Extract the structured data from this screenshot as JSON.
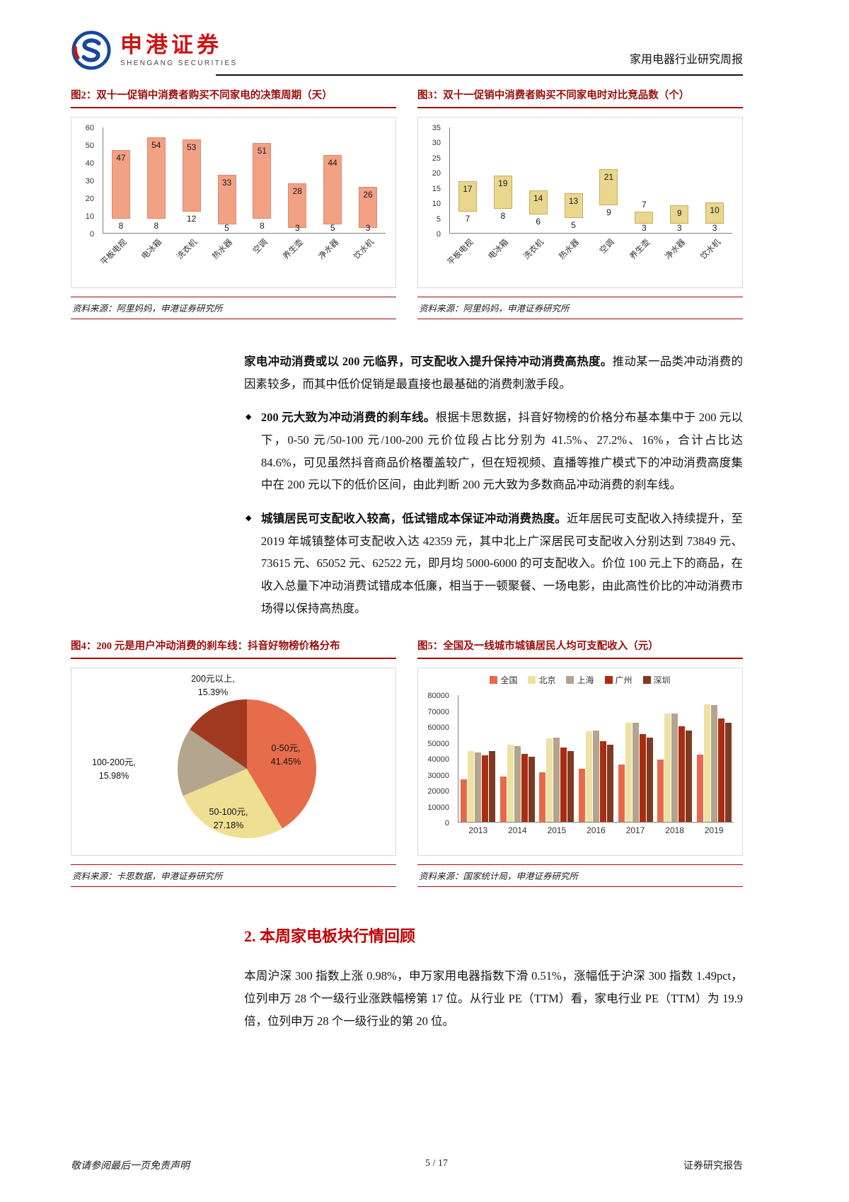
{
  "theme": {
    "accent_red": "#9b0c0c",
    "brand_red": "#cc1414",
    "heading_red": "#c00000"
  },
  "header": {
    "brand_cn": "申港证券",
    "brand_en": "SHENGANG SECURITIES",
    "report_title": "家用电器行业研究周报"
  },
  "body": {
    "bullet_marker": "◆",
    "intro_bold": "家电冲动消费或以 200 元临界，可支配收入提升保持冲动消费高热度。",
    "intro_rest": "推动某一品类冲动消费的因素较多，而其中低价促销是最直接也最基础的消费刺激手段。",
    "bullets": [
      {
        "bold": "200 元大致为冲动消费的刹车线。",
        "rest": "根据卡思数据，抖音好物榜的价格分布基本集中于 200 元以下，0-50 元/50-100 元/100-200 元价位段占比分别为 41.5%、27.2%、16%，合计占比达 84.6%，可见虽然抖音商品价格覆盖较广，但在短视频、直播等推广模式下的冲动消费高度集中在 200 元以下的低价区间，由此判断 200 元大致为多数商品冲动消费的刹车线。"
      },
      {
        "bold": "城镇居民可支配收入较高，低试错成本保证冲动消费热度。",
        "rest": "近年居民可支配收入持续提升，至 2019 年城镇整体可支配收入达 42359 元，其中北上广深居民可支配收入分别达到 73849 元、73615 元、65052 元、62522 元，即月均 5000-6000 的可支配收入。价位 100 元上下的商品，在收入总量下冲动消费试错成本低廉，相当于一顿聚餐、一场电影，由此高性价比的冲动消费市场得以保持高热度。"
      }
    ],
    "section_heading": "2. 本周家电板块行情回顾",
    "section_para": "本周沪深 300 指数上涨 0.98%，申万家用电器指数下滑 0.51%，涨幅低于沪深 300 指数 1.49pct，位列申万 28 个一级行业涨跌幅榜第 17 位。从行业 PE（TTM）看，家电行业 PE（TTM）为 19.9 倍，位列申万 28 个一级行业的第 20 位。"
  },
  "footer": {
    "disclaimer": "敬请参阅最后一页免责声明",
    "page_no": "5 / 17",
    "doc_type": "证券研究报告"
  },
  "chart_data": [
    {
      "id": "fig2",
      "type": "bar",
      "subtype": "floating-range",
      "title": "图2：双十一促销中消费者购买不同家电的决策周期（天）",
      "source": "资料来源：阿里妈妈，申港证券研究所",
      "categories": [
        "平板电视",
        "电冰箱",
        "洗衣机",
        "热水器",
        "空调",
        "养生壶",
        "净水器",
        "饮水机"
      ],
      "low": [
        8,
        8,
        12,
        5,
        8,
        3,
        5,
        3
      ],
      "high": [
        47,
        54,
        53,
        33,
        51,
        28,
        44,
        26
      ],
      "ylim": [
        0,
        60
      ],
      "ytick": 10,
      "bar_color": "#f2a184",
      "bar_border": "#d98b6d",
      "grid": false,
      "legend": false
    },
    {
      "id": "fig3",
      "type": "bar",
      "subtype": "floating-range",
      "title": "图3：双十一促销中消费者购买不同家电时对比竞品数（个）",
      "source": "资料来源：阿里妈妈，申港证券研究所",
      "categories": [
        "平板电视",
        "电冰箱",
        "洗衣机",
        "热水器",
        "空调",
        "养生壶",
        "净水器",
        "饮水机"
      ],
      "low": [
        7,
        8,
        6,
        5,
        9,
        3,
        3,
        3
      ],
      "high": [
        17,
        19,
        14,
        13,
        21,
        7,
        9,
        10
      ],
      "ylim": [
        0,
        35
      ],
      "ytick": 5,
      "bar_color": "#e9d78d",
      "bar_border": "#c9ad5c",
      "grid": false,
      "legend": false
    },
    {
      "id": "fig4",
      "type": "pie",
      "title": "图4：200 元是用户冲动消费的刹车线：抖音好物榜价格分布",
      "source": "资料来源：卡思数据，申港证券研究所",
      "slices": [
        {
          "label": "0-50元",
          "value": 41.45,
          "color": "#e76c4b",
          "callout": "0-50元,\n41.45%"
        },
        {
          "label": "50-100元",
          "value": 27.18,
          "color": "#efdf92",
          "callout": "50-100元,\n27.18%"
        },
        {
          "label": "100-200元",
          "value": 15.98,
          "color": "#b4a58f",
          "callout": "100-200元,\n15.98%"
        },
        {
          "label": "200元以上",
          "value": 15.39,
          "color": "#a13a20",
          "callout": "200元以上,\n15.39%"
        }
      ]
    },
    {
      "id": "fig5",
      "type": "bar",
      "subtype": "grouped",
      "title": "图5：全国及一线城市城镇居民人均可支配收入（元）",
      "source": "资料来源：国家统计局，申港证券研究所",
      "categories": [
        "2013",
        "2014",
        "2015",
        "2016",
        "2017",
        "2018",
        "2019"
      ],
      "series": [
        {
          "name": "全国",
          "color": "#e8694a",
          "values": [
            26955,
            28844,
            31195,
            33616,
            36396,
            39251,
            42359
          ]
        },
        {
          "name": "北京",
          "color": "#eee1a4",
          "values": [
            44564,
            48532,
            52859,
            57275,
            62406,
            67990,
            73849
          ]
        },
        {
          "name": "上海",
          "color": "#b3a48e",
          "values": [
            43851,
            47710,
            52962,
            57692,
            62596,
            68034,
            73615
          ]
        },
        {
          "name": "广州",
          "color": "#aa2d12",
          "values": [
            42049,
            42955,
            46735,
            50941,
            55400,
            59982,
            65052
          ]
        },
        {
          "name": "深圳",
          "color": "#7e3b22",
          "values": [
            44653,
            40948,
            44633,
            48695,
            52938,
            57544,
            62522
          ]
        }
      ],
      "ylim": [
        0,
        80000
      ],
      "ytick": 10000,
      "grid": false,
      "legend_position": "top"
    }
  ]
}
